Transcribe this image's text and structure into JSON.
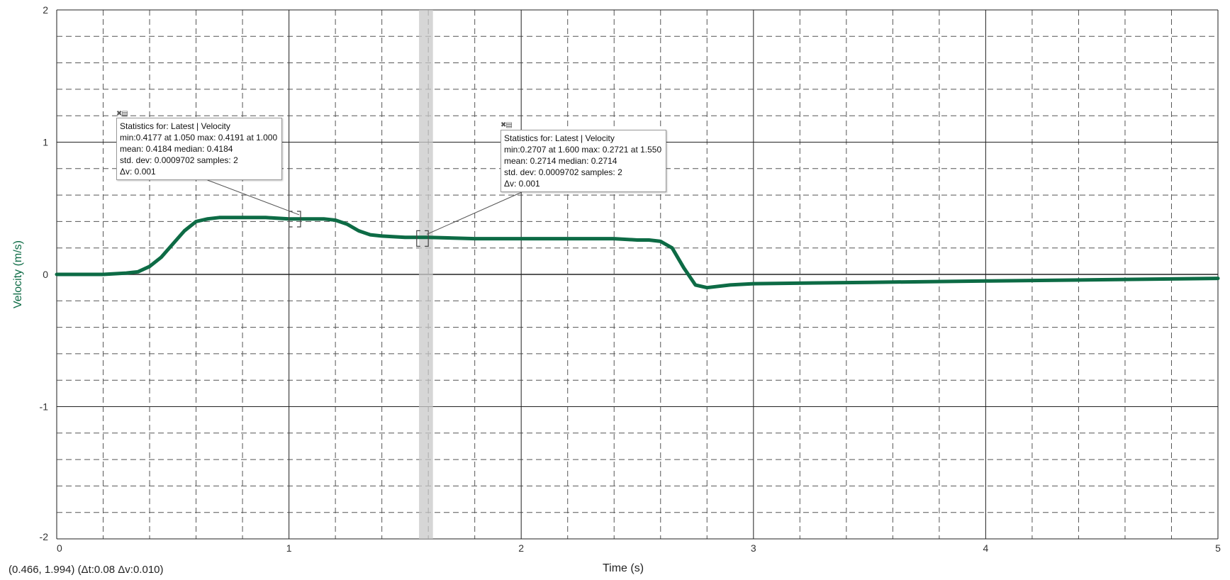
{
  "chart_data": {
    "type": "line",
    "xlabel": "Time (s)",
    "ylabel": "Velocity (m/s)",
    "xlim": [
      0,
      5
    ],
    "ylim": [
      -2,
      2
    ],
    "x_ticks": [
      "0",
      "1",
      "2",
      "3",
      "4",
      "5"
    ],
    "y_ticks": [
      "2",
      "1",
      "0",
      "-1",
      "-2"
    ],
    "grid": true,
    "line_color": "#0d6b45",
    "highlight_band": [
      1.56,
      1.62
    ],
    "series": [
      {
        "x": [
          0,
          0.1,
          0.2,
          0.3,
          0.35,
          0.4,
          0.45,
          0.5,
          0.55,
          0.6,
          0.65,
          0.7,
          0.8,
          0.9,
          1.0,
          1.05,
          1.1,
          1.15,
          1.2,
          1.25,
          1.3,
          1.35,
          1.4,
          1.5,
          1.6,
          1.8,
          2.0,
          2.2,
          2.4,
          2.5,
          2.55,
          2.6,
          2.65,
          2.7,
          2.75,
          2.8,
          2.9,
          3.0,
          3.5,
          4.0,
          4.5,
          5.0
        ],
        "y": [
          0.0,
          0.0,
          0.0,
          0.01,
          0.02,
          0.06,
          0.13,
          0.23,
          0.33,
          0.4,
          0.42,
          0.43,
          0.43,
          0.43,
          0.42,
          0.42,
          0.42,
          0.42,
          0.41,
          0.38,
          0.33,
          0.3,
          0.29,
          0.28,
          0.28,
          0.27,
          0.27,
          0.27,
          0.27,
          0.26,
          0.26,
          0.25,
          0.2,
          0.05,
          -0.08,
          -0.1,
          -0.08,
          -0.07,
          -0.06,
          -0.05,
          -0.04,
          -0.03
        ]
      }
    ],
    "annotations": [
      {
        "lines": [
          "Statistics for: Latest | Velocity",
          "min:0.4177 at 1.050 max: 0.4191 at 1.000",
          "mean: 0.4184 median: 0.4184",
          "std. dev: 0.0009702 samples: 2",
          "Δv: 0.001"
        ],
        "range": [
          1.0,
          1.05
        ],
        "value": 0.4184
      },
      {
        "lines": [
          "Statistics for: Latest | Velocity",
          "min:0.2707 at 1.600 max: 0.2721 at 1.550",
          "mean: 0.2714 median: 0.2714",
          "std. dev: 0.0009702 samples: 2",
          "Δv: 0.001"
        ],
        "range": [
          1.55,
          1.6
        ],
        "value": 0.2714
      }
    ]
  },
  "status": {
    "readout": "(0.466, 1.994) (Δt:0.08 Δv:0.010)"
  }
}
